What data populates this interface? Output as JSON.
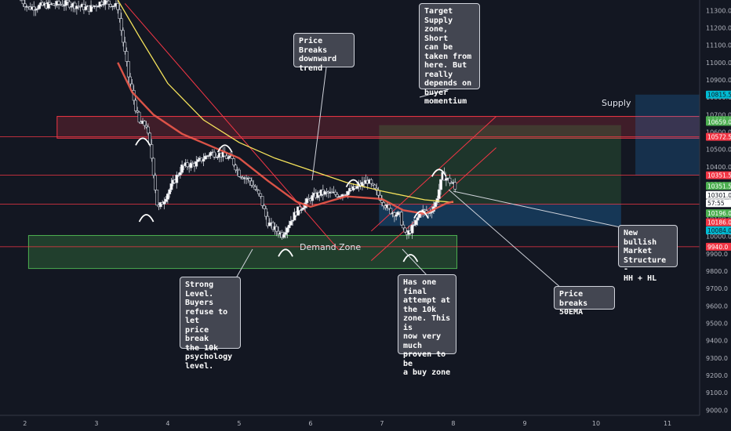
{
  "chart_data": {
    "type": "candlestick",
    "y_axis": {
      "range": [
        8970,
        11360
      ],
      "ticks": [
        "11300.0",
        "11200.0",
        "11100.0",
        "11000.0",
        "10900.0",
        "10800.0",
        "10700.0",
        "10600.0",
        "10500.0",
        "10400.0",
        "10300.0",
        "10200.0",
        "10100.0",
        "10000.0",
        "9900.0",
        "9800.0",
        "9700.0",
        "9600.0",
        "9500.0",
        "9400.0",
        "9300.0",
        "9200.0",
        "9100.0",
        "9000.0"
      ]
    },
    "x_axis": {
      "range": [
        1.65,
        11.45
      ],
      "ticks": [
        "2",
        "3",
        "4",
        "5",
        "6",
        "7",
        "8",
        "9",
        "10",
        "11"
      ]
    },
    "price_tags": [
      {
        "label": "10815.5",
        "value": 10815.5,
        "color": "#00bcd4",
        "text_color": "#131722"
      },
      {
        "label": "10669.0",
        "value": 10669.0,
        "color": "#4caf50",
        "text_color": "#ffffff"
      },
      {
        "label": "10659.0",
        "value": 10659.0,
        "color": "#4caf50",
        "text_color": "#ffffff"
      },
      {
        "label": "10572.5",
        "value": 10572.5,
        "color": "#f23645",
        "text_color": "#ffffff"
      },
      {
        "label": "10351.5",
        "value": 10351.5,
        "color": "#f23645",
        "text_color": "#ffffff"
      },
      {
        "label": "10351.5",
        "value": 10290.0,
        "color": "#4caf50",
        "text_color": "#ffffff"
      },
      {
        "label": "10301.0",
        "value": 10238.0,
        "color": "#ffffff",
        "text_color": "#131722"
      },
      {
        "label": "57:55",
        "value": 10191.0,
        "color": "#ffffff",
        "text_color": "#131722"
      },
      {
        "label": "10196.0",
        "value": 10133.0,
        "color": "#4caf50",
        "text_color": "#ffffff"
      },
      {
        "label": "10186.0",
        "value": 10081.0,
        "color": "#f23645",
        "text_color": "#ffffff"
      },
      {
        "label": "10084.0",
        "value": 10035.0,
        "color": "#00bcd4",
        "text_color": "#131722"
      },
      {
        "label": "9940.0",
        "value": 9940.0,
        "color": "#f23645",
        "text_color": "#ffffff"
      }
    ],
    "horizontal_lines": [
      10572.5,
      10351.5,
      10186.0,
      9940.0
    ],
    "zones": [
      {
        "name": "supply",
        "label": "Supply",
        "x": [
          2.45,
          11.45
        ],
        "y": [
          10690,
          10565
        ],
        "fill": "#f2364533",
        "stroke": "#f23645"
      },
      {
        "name": "demand",
        "label": "Demand Zone",
        "x": [
          2.05,
          8.05
        ],
        "y": [
          10005,
          9815
        ],
        "fill": "#4caf5044",
        "stroke": "#4caf50"
      },
      {
        "name": "target-profit",
        "label": "",
        "x": [
          6.96,
          10.35
        ],
        "y": [
          10640,
          10186
        ],
        "fill": "#4caf5033",
        "stroke": "none"
      },
      {
        "name": "target-stop",
        "label": "",
        "x": [
          6.96,
          10.35
        ],
        "y": [
          10186,
          10060
        ],
        "fill": "#2196f340",
        "stroke": "none"
      },
      {
        "name": "projection-box",
        "label": "",
        "x": [
          10.55,
          11.45
        ],
        "y": [
          10815.5,
          10351.5
        ],
        "fill": "#2196f333",
        "stroke": "none"
      }
    ],
    "ema_yellow": [
      [
        3.3,
        11360
      ],
      [
        3.6,
        11150
      ],
      [
        4.0,
        10880
      ],
      [
        4.5,
        10670
      ],
      [
        5.0,
        10540
      ],
      [
        5.5,
        10450
      ],
      [
        6.0,
        10380
      ],
      [
        6.5,
        10310
      ],
      [
        7.0,
        10260
      ],
      [
        7.3,
        10235
      ],
      [
        7.6,
        10210
      ],
      [
        8.0,
        10195
      ]
    ],
    "ema_red": [
      [
        3.3,
        11000
      ],
      [
        3.5,
        10830
      ],
      [
        3.8,
        10700
      ],
      [
        4.2,
        10590
      ],
      [
        4.6,
        10520
      ],
      [
        5.0,
        10450
      ],
      [
        5.4,
        10320
      ],
      [
        5.8,
        10200
      ],
      [
        6.0,
        10170
      ],
      [
        6.5,
        10230
      ],
      [
        7.0,
        10215
      ],
      [
        7.3,
        10150
      ],
      [
        7.6,
        10130
      ],
      [
        7.9,
        10190
      ],
      [
        8.0,
        10200
      ]
    ],
    "price_path": [
      [
        1.95,
        11360
      ],
      [
        2.05,
        11315
      ],
      [
        2.3,
        11330
      ],
      [
        2.6,
        11340
      ],
      [
        2.9,
        11310
      ],
      [
        3.1,
        11355
      ],
      [
        3.3,
        11320
      ],
      [
        3.45,
        10920
      ],
      [
        3.6,
        10650
      ],
      [
        3.7,
        10640
      ],
      [
        3.78,
        10440
      ],
      [
        3.86,
        10150
      ],
      [
        4.0,
        10250
      ],
      [
        4.2,
        10400
      ],
      [
        4.4,
        10420
      ],
      [
        4.6,
        10480
      ],
      [
        4.75,
        10470
      ],
      [
        4.9,
        10440
      ],
      [
        5.0,
        10360
      ],
      [
        5.15,
        10320
      ],
      [
        5.3,
        10220
      ],
      [
        5.4,
        10080
      ],
      [
        5.5,
        10040
      ],
      [
        5.6,
        10010
      ],
      [
        5.8,
        10140
      ],
      [
        6.0,
        10220
      ],
      [
        6.15,
        10250
      ],
      [
        6.4,
        10240
      ],
      [
        6.6,
        10270
      ],
      [
        6.8,
        10320
      ],
      [
        7.0,
        10210
      ],
      [
        7.1,
        10150
      ],
      [
        7.25,
        10120
      ],
      [
        7.33,
        10000
      ],
      [
        7.45,
        10060
      ],
      [
        7.55,
        10150
      ],
      [
        7.65,
        10130
      ],
      [
        7.75,
        10190
      ],
      [
        7.85,
        10350
      ],
      [
        8.0,
        10300
      ],
      [
        8.05,
        10240
      ]
    ],
    "trendline": [
      [
        3.4,
        11340
      ],
      [
        6.4,
        9920
      ]
    ],
    "channel_lines": [
      [
        [
          6.85,
          10030
        ],
        [
          8.6,
          10690
        ]
      ],
      [
        [
          6.85,
          9860
        ],
        [
          8.6,
          10510
        ]
      ]
    ],
    "arc_pivots": [
      [
        3.65,
        10560
      ],
      [
        3.7,
        10120
      ],
      [
        4.8,
        10520
      ],
      [
        6.6,
        10320
      ],
      [
        7.8,
        10380
      ],
      [
        7.55,
        10140
      ],
      [
        7.4,
        9890
      ],
      [
        5.65,
        9920
      ]
    ],
    "annotations": [
      {
        "text": "Target Supply zone, Short can be taken from here. But really depends on buyer momentium"
      },
      {
        "text": "Price Breaks downward trend"
      },
      {
        "text": "Strong Level. Buyers refuse to let price break the 10k psychology level."
      },
      {
        "text": "Has one final attempt at the 10k zone. This is now very much proven to be a buy zone"
      },
      {
        "text": "Price breaks 50EMA"
      },
      {
        "text": "New bullish Market Structure - HH + HL"
      }
    ]
  },
  "labels": {
    "supply": "Supply",
    "demand": "Demand Zone",
    "note_target": "Target\nSupply\nzone, Short\ncan be\ntaken from\nhere. But\nreally\ndepends on\nbuyer\nmomentium",
    "note_breaks": "Price Breaks\ndownward\ntrend",
    "note_strong": "Strong\nLevel.\nBuyers\nrefuse to let\nprice break\nthe 10k\npsychology\nlevel.",
    "note_final": "Has one\nfinal\nattempt at\nthe 10k\nzone. This is\nnow very\nmuch\nproven to be\na buy zone",
    "note_ema": "Price breaks\n50EMA",
    "note_bullish": "New bullish\nMarket\nStructure -\nHH + HL"
  }
}
